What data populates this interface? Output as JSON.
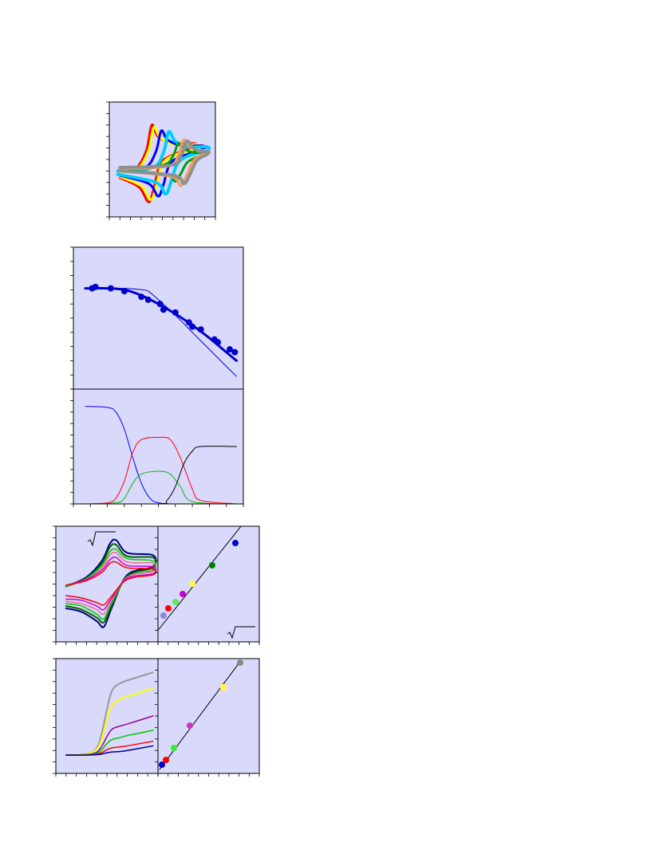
{
  "chart_data": [
    {
      "type": "line",
      "background": "#d9d9fb",
      "xlim": [
        0,
        10
      ],
      "ylim": [
        0,
        10
      ],
      "xticks": [
        0,
        1,
        2,
        3,
        4,
        5,
        6,
        7,
        8,
        9,
        10
      ],
      "yticks": [
        0,
        1,
        2,
        3,
        4,
        5,
        6,
        7,
        8,
        9,
        10
      ],
      "series": [
        {
          "color": "#ff0000",
          "width": 3,
          "x": [
            1,
            2.5,
            3.5,
            4,
            4.6,
            6,
            8,
            8,
            6,
            4.8,
            4.2,
            3.7,
            2.8,
            1
          ],
          "values": [
            3.8,
            4.2,
            5.8,
            8.0,
            7.0,
            6.4,
            6.4,
            6.1,
            5.4,
            4.6,
            2.5,
            1.3,
            2.6,
            3.4
          ]
        },
        {
          "color": "#ffff00",
          "width": 3,
          "x": [
            1,
            2.7,
            3.7,
            4.2,
            4.8,
            6.2,
            8.4,
            8.4,
            6.2,
            5,
            4.4,
            3.9,
            3,
            1
          ],
          "values": [
            3.8,
            4.2,
            5.8,
            7.8,
            6.9,
            6.3,
            6.3,
            6.0,
            5.4,
            4.6,
            2.6,
            1.5,
            2.7,
            3.5
          ]
        },
        {
          "color": "#0000ff",
          "width": 3,
          "x": [
            1,
            3.4,
            4.4,
            4.9,
            5.5,
            6.9,
            8.8,
            8.8,
            6.9,
            5.7,
            5.1,
            4.6,
            3.7,
            1
          ],
          "values": [
            4.0,
            4.3,
            5.7,
            7.5,
            6.7,
            6.2,
            6.2,
            5.9,
            5.3,
            4.6,
            2.8,
            1.8,
            2.9,
            3.6
          ]
        },
        {
          "color": "#00ccff",
          "width": 4,
          "x": [
            0.8,
            4.1,
            5.1,
            5.6,
            6.2,
            7.4,
            9.2,
            9.2,
            7.4,
            6.4,
            5.8,
            5.3,
            4.4,
            0.8
          ],
          "values": [
            4.0,
            4.3,
            5.6,
            7.4,
            6.6,
            6.1,
            6.1,
            5.8,
            5.3,
            4.6,
            3.0,
            2.0,
            3.0,
            3.7
          ]
        },
        {
          "color": "#00a000",
          "width": 3,
          "x": [
            1,
            5,
            6,
            6.5,
            7.1,
            8,
            9,
            9,
            8,
            7.3,
            6.7,
            6.2,
            5.3,
            1
          ],
          "values": [
            4.3,
            4.5,
            5.3,
            6.4,
            5.9,
            5.6,
            5.6,
            5.5,
            5.1,
            4.7,
            3.7,
            3.1,
            3.7,
            4.1
          ]
        },
        {
          "color": "#ff9955",
          "width": 3,
          "x": [
            1,
            5.5,
            6.5,
            7,
            7.6,
            8.3,
            9.2,
            9.2,
            8.3,
            7.8,
            7.2,
            6.7,
            5.8,
            1
          ],
          "values": [
            4.2,
            4.4,
            5.4,
            6.7,
            6.1,
            5.8,
            5.8,
            5.6,
            5.2,
            4.7,
            3.4,
            2.7,
            3.5,
            4.0
          ]
        },
        {
          "color": "#909090",
          "width": 4,
          "x": [
            1,
            5.8,
            6.8,
            7.3,
            7.9,
            8.5,
            9.3,
            9.3,
            8.5,
            8.1,
            7.5,
            7,
            6.1,
            1
          ],
          "values": [
            4.3,
            4.5,
            5.4,
            6.6,
            6.0,
            5.7,
            5.7,
            5.5,
            5.1,
            4.7,
            3.5,
            2.9,
            3.6,
            4.0
          ]
        }
      ]
    },
    {
      "type": "scatter",
      "background": "#d9d9fb",
      "xlim": [
        0,
        10
      ],
      "ylim": [
        0,
        10
      ],
      "xticks": [
        0,
        1,
        2,
        3,
        4,
        5,
        6,
        7,
        8,
        9,
        10
      ],
      "yticks": [
        0,
        1,
        2,
        3,
        4,
        5,
        6,
        7,
        8,
        9,
        10
      ],
      "series": [
        {
          "color": "#0000cc",
          "width": 3,
          "mode": "line",
          "x": [
            0.7,
            2,
            3,
            4,
            5,
            6,
            7,
            8,
            9,
            9.6
          ],
          "values": [
            7.1,
            7.1,
            7.0,
            6.6,
            6.0,
            5.3,
            4.5,
            3.6,
            2.6,
            2.0
          ]
        },
        {
          "color": "#0000cc",
          "width": 1,
          "mode": "line",
          "x": [
            0.7,
            3,
            4,
            4.4,
            5,
            6,
            7,
            8,
            9,
            9.6
          ],
          "values": [
            7.1,
            7.1,
            7.0,
            6.9,
            6.3,
            5.2,
            4.0,
            2.8,
            1.6,
            0.9
          ]
        },
        {
          "color": "#0000cc",
          "x": [
            1.1,
            1.3,
            2.2,
            3.0,
            4.0,
            4.4,
            5.1,
            5.3,
            6.0,
            6.8,
            7.0,
            7.5,
            8.3,
            8.5,
            9.2,
            9.5
          ],
          "values": [
            7.1,
            7.2,
            7.1,
            6.9,
            6.5,
            6.3,
            6.0,
            5.6,
            5.4,
            4.7,
            4.4,
            4.2,
            3.5,
            3.3,
            2.8,
            2.6
          ]
        }
      ]
    },
    {
      "type": "line",
      "background": "#d9d9fb",
      "xlim": [
        0,
        10
      ],
      "ylim": [
        0,
        10
      ],
      "xticks": [
        0,
        1,
        2,
        3,
        4,
        5,
        6,
        7,
        8,
        9,
        10
      ],
      "yticks": [
        0,
        1,
        2,
        3,
        4,
        5,
        6,
        7,
        8,
        9,
        10
      ],
      "series": [
        {
          "color": "#0000ff",
          "width": 1,
          "x": [
            0.7,
            2,
            2.5,
            3,
            3.5,
            4,
            4.5,
            5,
            6,
            9.6
          ],
          "values": [
            8.5,
            8.4,
            8.0,
            6.5,
            4.0,
            1.8,
            0.5,
            0.1,
            0,
            0
          ]
        },
        {
          "color": "#ff0000",
          "width": 1,
          "x": [
            0.7,
            2,
            2.5,
            3,
            3.5,
            4,
            5,
            5.7,
            6.3,
            7,
            7.5,
            9.6
          ],
          "values": [
            0,
            0.1,
            0.5,
            2.0,
            4.5,
            5.6,
            5.8,
            5.6,
            4.0,
            1.3,
            0.3,
            0
          ]
        },
        {
          "color": "#00bb00",
          "width": 1,
          "x": [
            0.7,
            2.5,
            3,
            3.5,
            4,
            5,
            5.7,
            6.3,
            7,
            9.6
          ],
          "values": [
            0,
            0.1,
            0.5,
            1.8,
            2.6,
            2.85,
            2.6,
            1.5,
            0.2,
            0
          ]
        },
        {
          "color": "#000000",
          "width": 1,
          "x": [
            0.7,
            5,
            5.5,
            6,
            6.5,
            7,
            7.5,
            9.6
          ],
          "values": [
            0,
            0,
            0.3,
            1.5,
            3.5,
            4.6,
            5.0,
            5.0
          ]
        }
      ]
    },
    {
      "type": "line",
      "background": "#d9d9fb",
      "xlim": [
        0,
        10
      ],
      "ylim": [
        0,
        10
      ],
      "xticks": [
        0,
        1,
        2,
        3,
        4,
        5,
        6,
        7,
        8,
        9,
        10
      ],
      "yticks": [
        0,
        1,
        2,
        3,
        4,
        5,
        6,
        7,
        8,
        9,
        10
      ],
      "series": [
        {
          "color": "#000080",
          "width": 2,
          "x": [
            1,
            3,
            4.5,
            5.3,
            5.9,
            7,
            9.5,
            9.5,
            7,
            5.5,
            4.7,
            4,
            2.5,
            1
          ],
          "values": [
            4.8,
            5.6,
            7.0,
            8.5,
            8.8,
            7.7,
            7.5,
            6.5,
            5.8,
            3.0,
            1.3,
            1.8,
            2.6,
            2.9
          ]
        },
        {
          "color": "#006400",
          "width": 2,
          "x": [
            1,
            3,
            4.5,
            5.3,
            5.9,
            7,
            9.5,
            9.5,
            7,
            5.5,
            4.7,
            4,
            2.5,
            1
          ],
          "values": [
            4.8,
            5.5,
            6.8,
            8.2,
            8.4,
            7.4,
            7.3,
            6.4,
            5.7,
            3.2,
            1.7,
            2.1,
            2.8,
            3.1
          ]
        },
        {
          "color": "#00cc00",
          "width": 1.5,
          "x": [
            1,
            3,
            4.5,
            5.3,
            5.9,
            7,
            9.5,
            9.5,
            7,
            5.5,
            4.7,
            4,
            2.5,
            1
          ],
          "values": [
            4.8,
            5.5,
            6.6,
            7.8,
            8.0,
            7.2,
            7.0,
            6.2,
            5.6,
            3.4,
            2.0,
            2.4,
            3.1,
            3.3
          ]
        },
        {
          "color": "#ff6699",
          "width": 1.5,
          "x": [
            1,
            3,
            4.5,
            5.3,
            5.9,
            7,
            9.5,
            9.5,
            7,
            5.5,
            4.7,
            4,
            2.5,
            1
          ],
          "values": [
            4.9,
            5.4,
            6.4,
            7.5,
            7.7,
            6.9,
            6.8,
            6.1,
            5.6,
            3.6,
            2.4,
            2.8,
            3.3,
            3.5
          ]
        },
        {
          "color": "#cc00cc",
          "width": 1.5,
          "x": [
            1,
            3,
            4.5,
            5.3,
            5.9,
            7,
            9.5,
            9.5,
            7,
            5.5,
            4.7,
            4,
            2.5,
            1
          ],
          "values": [
            4.9,
            5.4,
            6.2,
            7.1,
            7.3,
            6.6,
            6.5,
            5.9,
            5.5,
            3.8,
            2.8,
            3.1,
            3.6,
            3.7
          ]
        },
        {
          "color": "#ff0000",
          "width": 1.5,
          "x": [
            1,
            3,
            4.5,
            5.3,
            5.9,
            7,
            9.5,
            9.5,
            7,
            5.5,
            4.7,
            4,
            2.5,
            1
          ],
          "values": [
            4.9,
            5.3,
            6.0,
            6.8,
            6.9,
            6.4,
            6.3,
            5.8,
            5.4,
            4.0,
            3.2,
            3.4,
            3.8,
            4.0
          ]
        }
      ]
    },
    {
      "type": "scatter",
      "background": "#d9d9fb",
      "xlim": [
        0,
        10
      ],
      "ylim": [
        0,
        10
      ],
      "xticks": [
        0,
        1,
        2,
        3,
        4,
        5,
        6,
        7,
        8,
        9,
        10
      ],
      "yticks": [
        0,
        1,
        2,
        3,
        4,
        5,
        6,
        7,
        8,
        9,
        10
      ],
      "series": [
        {
          "color": "#000000",
          "width": 1,
          "mode": "line",
          "x": [
            0,
            8.2
          ],
          "values": [
            1.0,
            10
          ]
        },
        {
          "colors": [
            "#8888dd",
            "#ff0000",
            "#55ee55",
            "#cc00cc",
            "#ffff33",
            "#008000",
            "#0000cc"
          ],
          "x": [
            0.55,
            1.02,
            1.73,
            2.44,
            3.39,
            5.35,
            7.64
          ],
          "values": [
            2.28,
            2.9,
            3.45,
            4.14,
            5.03,
            6.62,
            8.55
          ]
        }
      ]
    },
    {
      "type": "line",
      "background": "#d9d9fb",
      "xlim": [
        0,
        10
      ],
      "ylim": [
        0,
        10
      ],
      "xticks": [
        0,
        1,
        2,
        3,
        4,
        5,
        6,
        7,
        8,
        9,
        10
      ],
      "yticks": [
        0,
        1,
        2,
        3,
        4,
        5,
        6,
        7,
        8,
        9,
        10
      ],
      "series": [
        {
          "color": "#999999",
          "width": 2,
          "x": [
            1,
            3,
            4,
            4.5,
            5,
            5.5,
            6.2,
            7,
            9.5
          ],
          "values": [
            1.6,
            1.7,
            2.2,
            3.5,
            5.6,
            7.2,
            7.8,
            8.1,
            8.8
          ]
        },
        {
          "color": "#ffff00",
          "width": 2,
          "x": [
            1,
            3,
            4,
            4.5,
            5,
            5.5,
            6.2,
            7,
            9.5
          ],
          "values": [
            1.6,
            1.7,
            2.1,
            3.0,
            4.7,
            5.9,
            6.4,
            6.7,
            7.4
          ]
        },
        {
          "color": "#990099",
          "width": 1.5,
          "x": [
            1,
            3,
            4,
            4.5,
            5,
            5.5,
            6.2,
            7,
            9.5
          ],
          "values": [
            1.6,
            1.65,
            1.85,
            2.35,
            3.2,
            3.85,
            4.1,
            4.3,
            5.0
          ]
        },
        {
          "color": "#00cc00",
          "width": 1.5,
          "x": [
            1,
            3,
            4,
            4.5,
            5,
            5.5,
            6.2,
            7,
            9.5
          ],
          "values": [
            1.6,
            1.63,
            1.75,
            2.05,
            2.6,
            2.95,
            3.1,
            3.3,
            3.75
          ]
        },
        {
          "color": "#ff0000",
          "width": 1.5,
          "x": [
            1,
            3,
            4,
            4.5,
            5,
            5.5,
            6.2,
            7,
            9.5
          ],
          "values": [
            1.6,
            1.61,
            1.67,
            1.81,
            2.06,
            2.23,
            2.3,
            2.4,
            2.8
          ]
        },
        {
          "color": "#000099",
          "width": 1.5,
          "x": [
            1,
            3,
            4,
            4.5,
            5,
            5.5,
            6.2,
            7,
            9.5
          ],
          "values": [
            1.6,
            1.6,
            1.63,
            1.69,
            1.8,
            1.87,
            1.9,
            2.0,
            2.4
          ]
        }
      ]
    },
    {
      "type": "scatter",
      "background": "#d9d9fb",
      "xlim": [
        0,
        10
      ],
      "ylim": [
        0,
        10
      ],
      "xticks": [
        0,
        1,
        2,
        3,
        4,
        5,
        6,
        7,
        8,
        9,
        10
      ],
      "yticks": [
        0,
        1,
        2,
        3,
        4,
        5,
        6,
        7,
        8,
        9,
        10
      ],
      "series": [
        {
          "color": "#000000",
          "width": 1,
          "mode": "line",
          "x": [
            0.16,
            8.2
          ],
          "values": [
            0.35,
            9.85
          ]
        },
        {
          "colors": [
            "#0000cc",
            "#ff0000",
            "#33ee33",
            "#cc33cc",
            "#ffff33",
            "#888888"
          ],
          "x": [
            0.39,
            0.79,
            1.57,
            3.15,
            6.46,
            8.11
          ],
          "values": [
            0.76,
            1.18,
            2.22,
            4.17,
            7.5,
            9.65
          ]
        }
      ]
    }
  ]
}
